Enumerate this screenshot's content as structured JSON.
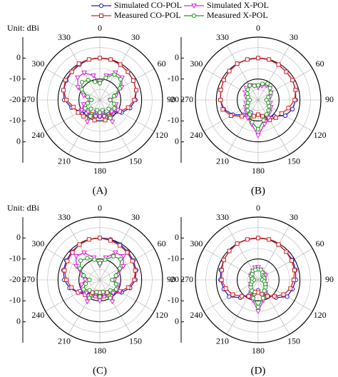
{
  "chart_data": [
    {
      "type": "polar",
      "label": "(A)",
      "unit_label": "Unit: dBi",
      "rlim": [
        -20,
        10
      ],
      "rticks": [
        -20,
        -10,
        0
      ],
      "thetaticks": [
        0,
        30,
        60,
        90,
        120,
        150,
        180,
        210,
        240,
        270,
        300,
        330
      ],
      "theta": [
        0,
        15,
        30,
        45,
        60,
        75,
        90,
        105,
        120,
        135,
        150,
        165,
        180,
        195,
        210,
        225,
        240,
        255,
        270,
        285,
        300,
        315,
        330,
        345
      ],
      "series": [
        {
          "name": "Simulated CO-POL",
          "color": "#1f1fbf",
          "marker": "circle",
          "values": [
            0,
            0,
            -0.5,
            -1,
            -1.5,
            -2,
            -3,
            -5,
            -8,
            -11,
            -12,
            -12,
            -12,
            -12,
            -12,
            -11,
            -9,
            -6,
            -3,
            -2,
            -1.5,
            -1,
            -0.5,
            0
          ]
        },
        {
          "name": "Measured CO-POL",
          "color": "#d42020",
          "marker": "square",
          "values": [
            0,
            0,
            -0.5,
            -1,
            -1.5,
            -2,
            -3.5,
            -6,
            -9,
            -12,
            -11,
            -10,
            -13,
            -10,
            -12,
            -9,
            -8,
            -7,
            -4,
            -2,
            -1,
            -1,
            0,
            0
          ]
        },
        {
          "name": "Simulated X-POL",
          "color": "#e020e0",
          "marker": "triangle",
          "values": [
            -12,
            -8,
            -5,
            -5,
            -8,
            -12,
            -15,
            -12,
            -10,
            -12,
            -8,
            -14,
            -12,
            -14,
            -8,
            -12,
            -10,
            -12,
            -15,
            -12,
            -8,
            -5,
            -5,
            -8
          ]
        },
        {
          "name": "Measured X-POL",
          "color": "#1e9e1e",
          "marker": "circle",
          "values": [
            -12,
            -9,
            -6,
            -6,
            -9,
            -13,
            -15,
            -13,
            -12,
            -14,
            -10,
            -15,
            -14,
            -15,
            -11,
            -14,
            -12,
            -14,
            -16,
            -14,
            -10,
            -8,
            -9,
            -11
          ]
        }
      ]
    },
    {
      "type": "polar",
      "label": "(B)",
      "rlim": [
        -20,
        10
      ],
      "rticks": [
        -20,
        -10,
        0
      ],
      "thetaticks": [
        0,
        30,
        60,
        90,
        120,
        150,
        180,
        210,
        240,
        270,
        300,
        330
      ],
      "theta": [
        0,
        15,
        30,
        45,
        60,
        75,
        90,
        105,
        120,
        135,
        150,
        165,
        180,
        195,
        210,
        225,
        240,
        255,
        270,
        285,
        300,
        315,
        330,
        345
      ],
      "series": [
        {
          "color": "#1f1fbf",
          "marker": "circle",
          "values": [
            0,
            0,
            -0.5,
            -1,
            -1,
            -1.5,
            -2,
            -3,
            -5,
            -9,
            -11,
            -12,
            -13,
            -12,
            -13,
            -10,
            -6,
            -3,
            -2,
            -1.5,
            -1,
            -0.5,
            0,
            0
          ]
        },
        {
          "color": "#d42020",
          "marker": "square",
          "values": [
            0,
            0,
            -0.5,
            -1,
            -1,
            -1.5,
            -2.5,
            -5,
            -7,
            -8,
            -9,
            -12,
            -13,
            -12,
            -11,
            -9,
            -5,
            -2.5,
            -2,
            -1.5,
            -1,
            -0.5,
            0,
            0
          ]
        },
        {
          "color": "#e020e0",
          "marker": "triangle",
          "values": [
            -14,
            -13,
            -12,
            -12,
            -13,
            -14,
            -15,
            -14,
            -13,
            -12,
            -10,
            -8,
            -3,
            -8,
            -10,
            -12,
            -13,
            -14,
            -15,
            -14,
            -13,
            -12,
            -12,
            -13
          ]
        },
        {
          "color": "#1e9e1e",
          "marker": "circle",
          "values": [
            -13,
            -12,
            -11,
            -12,
            -13,
            -15,
            -16,
            -15,
            -14,
            -13,
            -12,
            -10,
            -6,
            -9,
            -12,
            -13,
            -14,
            -15,
            -16,
            -15,
            -14,
            -13,
            -12,
            -13
          ]
        }
      ]
    },
    {
      "type": "polar",
      "label": "(C)",
      "unit_label": "Unit: dBi",
      "rlim": [
        -20,
        10
      ],
      "rticks": [
        -20,
        -10,
        0
      ],
      "thetaticks": [
        0,
        30,
        60,
        90,
        120,
        150,
        180,
        210,
        240,
        270,
        300,
        330
      ],
      "theta": [
        0,
        15,
        30,
        45,
        60,
        75,
        90,
        105,
        120,
        135,
        150,
        165,
        180,
        195,
        210,
        225,
        240,
        255,
        270,
        285,
        300,
        315,
        330,
        345
      ],
      "series": [
        {
          "color": "#1f1fbf",
          "marker": "circle",
          "values": [
            0,
            0,
            -0.5,
            -1,
            -1.5,
            -2,
            -3,
            -5,
            -8,
            -11,
            -13,
            -13,
            -12,
            -13,
            -13,
            -11,
            -8,
            -5,
            -3,
            -2,
            -1.5,
            -1,
            -0.5,
            0
          ]
        },
        {
          "color": "#d42020",
          "marker": "square",
          "values": [
            0,
            -0.5,
            -1,
            -1.5,
            -2,
            -2.5,
            -3.5,
            -6,
            -9,
            -12,
            -13,
            -12,
            -14,
            -12,
            -13,
            -10,
            -8,
            -6,
            -4,
            -2.5,
            -2,
            -1.5,
            -0.5,
            0
          ]
        },
        {
          "color": "#e020e0",
          "marker": "triangle",
          "values": [
            -13,
            -9,
            -5,
            -4,
            -7,
            -11,
            -13,
            -11,
            -9,
            -11,
            -8,
            -13,
            -10,
            -13,
            -8,
            -11,
            -9,
            -11,
            -13,
            -11,
            -7,
            -4,
            -5,
            -9
          ]
        },
        {
          "color": "#1e9e1e",
          "marker": "circle",
          "values": [
            -12,
            -10,
            -7,
            -6,
            -9,
            -12,
            -14,
            -12,
            -11,
            -13,
            -10,
            -14,
            -12,
            -14,
            -10,
            -13,
            -11,
            -13,
            -15,
            -12,
            -9,
            -7,
            -8,
            -10
          ]
        }
      ]
    },
    {
      "type": "polar",
      "label": "(D)",
      "rlim": [
        -20,
        10
      ],
      "rticks": [
        -20,
        -10,
        0
      ],
      "thetaticks": [
        0,
        30,
        60,
        90,
        120,
        150,
        180,
        210,
        240,
        270,
        300,
        330
      ],
      "theta": [
        0,
        15,
        30,
        45,
        60,
        75,
        90,
        105,
        120,
        135,
        150,
        165,
        180,
        195,
        210,
        225,
        240,
        255,
        270,
        285,
        300,
        315,
        330,
        345
      ],
      "series": [
        {
          "color": "#1f1fbf",
          "marker": "circle",
          "values": [
            0,
            0,
            -0.5,
            -1,
            -1,
            -1.5,
            -2,
            -3,
            -4,
            -8,
            -12,
            -13,
            -15,
            -13,
            -12,
            -8,
            -4,
            -3,
            -2,
            -1.5,
            -1,
            -0.5,
            0,
            0
          ]
        },
        {
          "color": "#d42020",
          "marker": "square",
          "values": [
            0,
            0,
            -0.5,
            -1,
            -1.5,
            -2,
            -3,
            -4,
            -6,
            -9,
            -11,
            -13,
            -14,
            -14,
            -11,
            -9,
            -6,
            -4,
            -2.5,
            -2,
            -1,
            -0.5,
            0,
            0
          ]
        },
        {
          "color": "#e020e0",
          "marker": "triangle",
          "values": [
            -14,
            -15,
            -16,
            -16,
            -16,
            -17,
            -17,
            -17,
            -16,
            -15,
            -13,
            -10,
            -5,
            -10,
            -13,
            -15,
            -16,
            -17,
            -17,
            -17,
            -16,
            -16,
            -15,
            -14
          ]
        },
        {
          "color": "#1e9e1e",
          "marker": "circle",
          "values": [
            -15,
            -15,
            -16,
            -17,
            -17,
            -17,
            -18,
            -17,
            -16,
            -15,
            -14,
            -11,
            -7,
            -11,
            -14,
            -15,
            -16,
            -17,
            -18,
            -17,
            -16,
            -16,
            -15,
            -15
          ]
        }
      ]
    }
  ]
}
